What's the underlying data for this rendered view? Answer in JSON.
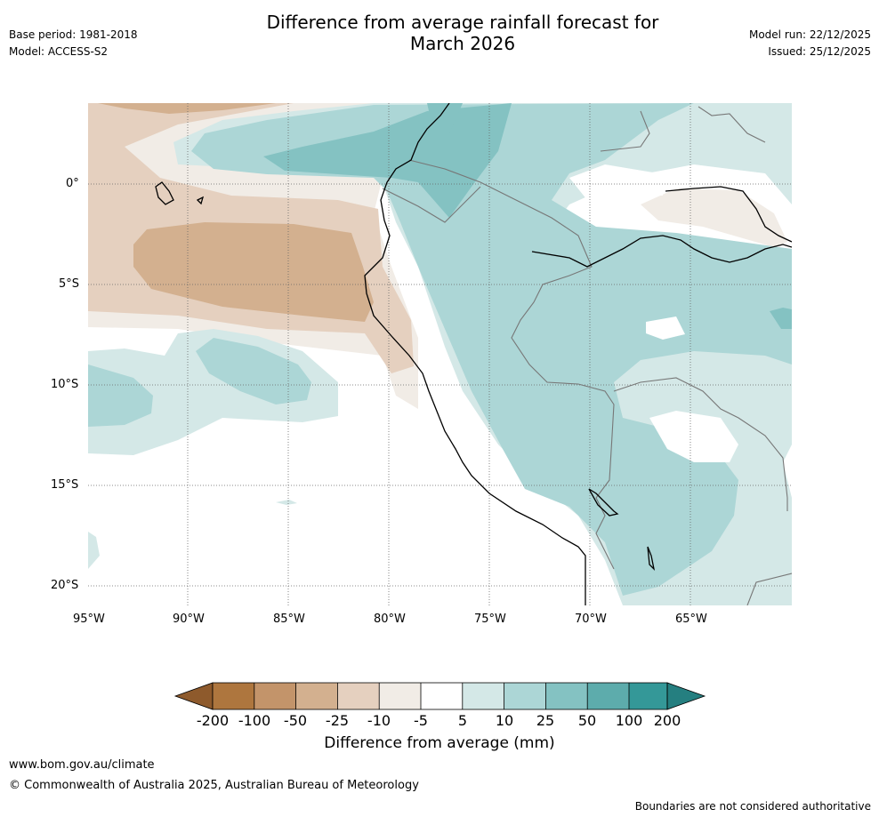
{
  "header": {
    "title_line1": "Difference from average rainfall forecast for",
    "title_line2": "March 2026",
    "base_period": "Base period: 1981-2018",
    "model": "Model: ACCESS-S2",
    "model_run": "Model run: 22/12/2025",
    "issued": "Issued: 25/12/2025"
  },
  "map": {
    "lat_labels": [
      "0°",
      "5°S",
      "10°S",
      "15°S",
      "20°S"
    ],
    "lon_labels": [
      "95°W",
      "90°W",
      "85°W",
      "80°W",
      "75°W",
      "70°W",
      "65°W"
    ]
  },
  "legend": {
    "tick_labels": [
      "-200",
      "-100",
      "-50",
      "-25",
      "-10",
      "-5",
      "5",
      "10",
      "25",
      "50",
      "100",
      "200"
    ],
    "colors": [
      "#8e5a2c",
      "#ae763e",
      "#c3946a",
      "#d3b08f",
      "#e5d0bf",
      "#f1ece6",
      "#ffffff",
      "#d4e8e7",
      "#acd6d6",
      "#84c2c2",
      "#5dacac",
      "#349898",
      "#257f80"
    ],
    "axis_label": "Difference from average (mm)"
  },
  "footer": {
    "url": "www.bom.gov.au/climate",
    "copyright": "© Commonwealth of Australia 2025, Australian Bureau of Meteorology",
    "disclaimer": "Boundaries are not considered authoritative"
  }
}
